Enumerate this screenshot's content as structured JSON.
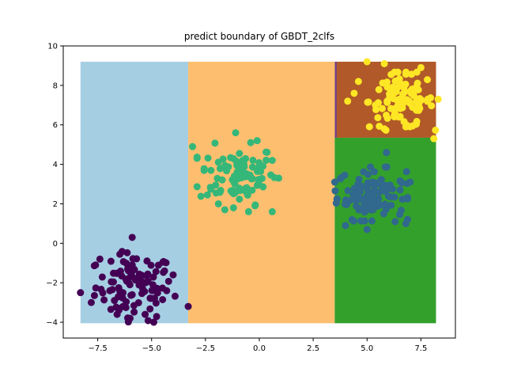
{
  "chart_data": {
    "type": "scatter",
    "title": "predict boundary of GBDT_2clfs",
    "xlabel": "",
    "ylabel": "",
    "xlim": [
      -9.1,
      9.1
    ],
    "ylim": [
      -4.8,
      10.0
    ],
    "xticks": [
      -7.5,
      -5.0,
      -2.5,
      0.0,
      2.5,
      5.0,
      7.5
    ],
    "xtick_labels": [
      "−7.5",
      "−5.0",
      "−2.5",
      "0.0",
      "2.5",
      "5.0",
      "7.5"
    ],
    "yticks": [
      -4,
      -2,
      0,
      2,
      4,
      6,
      8,
      10
    ],
    "ytick_labels": [
      "−4",
      "−2",
      "0",
      "2",
      "4",
      "6",
      "8",
      "10"
    ],
    "grid": false,
    "regions": [
      {
        "x": [
          -8.3,
          -3.3
        ],
        "y": [
          -4.05,
          9.2
        ],
        "color": "#a6cee3"
      },
      {
        "x": [
          -3.3,
          3.5
        ],
        "y": [
          -4.05,
          9.2
        ],
        "color": "#fdbf6f"
      },
      {
        "x": [
          3.5,
          8.2
        ],
        "y": [
          -4.05,
          5.35
        ],
        "color": "#33a02c"
      },
      {
        "x": [
          3.5,
          8.2
        ],
        "y": [
          5.35,
          9.2
        ],
        "color": "#b15928"
      }
    ],
    "boundary_line": {
      "x": 3.55,
      "y": [
        5.35,
        9.2
      ],
      "color": "#6a3d9a"
    },
    "series": [
      {
        "color": "#440154",
        "center": [
          -5.8,
          -2.2
        ],
        "spread": [
          0.9,
          0.85
        ],
        "count": 110,
        "points": [
          [
            -8.3,
            -2.5
          ],
          [
            -7.8,
            -3.0
          ],
          [
            -6.6,
            -3.6
          ],
          [
            -6.5,
            -3.3
          ],
          [
            -6.0,
            -3.8
          ],
          [
            -5.3,
            -3.6
          ],
          [
            -4.9,
            -4.0
          ],
          [
            -3.3,
            -3.2
          ],
          [
            -5.9,
            0.3
          ],
          [
            -7.4,
            -0.8
          ],
          [
            -7.6,
            -1.1
          ],
          [
            -4.4,
            -1.4
          ],
          [
            -4.3,
            -2.4
          ],
          [
            -4.0,
            -1.6
          ]
        ]
      },
      {
        "color": "#35b779",
        "center": [
          -1.0,
          3.5
        ],
        "spread": [
          0.9,
          0.75
        ],
        "count": 100,
        "points": [
          [
            -3.1,
            4.9
          ],
          [
            -1.1,
            5.6
          ],
          [
            -0.4,
            5.1
          ],
          [
            -0.1,
            5.2
          ],
          [
            0.9,
            3.3
          ],
          [
            0.6,
            4.2
          ],
          [
            -1.9,
            2.0
          ],
          [
            -1.6,
            1.7
          ],
          [
            -1.2,
            1.8
          ],
          [
            0.6,
            1.6
          ],
          [
            -0.2,
            1.9
          ],
          [
            -0.5,
            1.6
          ]
        ]
      },
      {
        "color": "#31688e",
        "center": [
          5.2,
          2.5
        ],
        "spread": [
          0.8,
          0.65
        ],
        "count": 110,
        "points": [
          [
            3.5,
            3.1
          ],
          [
            4.0,
            0.9
          ],
          [
            5.0,
            0.7
          ],
          [
            5.9,
            4.6
          ],
          [
            6.8,
            1.0
          ],
          [
            7.0,
            3.1
          ],
          [
            6.3,
            1.1
          ],
          [
            4.3,
            1.2
          ]
        ]
      },
      {
        "color": "#fde725",
        "center": [
          6.6,
          7.2
        ],
        "spread": [
          0.75,
          0.7
        ],
        "count": 110,
        "points": [
          [
            5.0,
            9.2
          ],
          [
            5.8,
            9.1
          ],
          [
            7.5,
            8.9
          ],
          [
            4.6,
            8.2
          ],
          [
            4.1,
            7.2
          ],
          [
            4.4,
            7.6
          ],
          [
            8.3,
            7.3
          ],
          [
            8.1,
            5.3
          ],
          [
            5.8,
            5.8
          ],
          [
            6.8,
            5.9
          ]
        ]
      }
    ]
  }
}
